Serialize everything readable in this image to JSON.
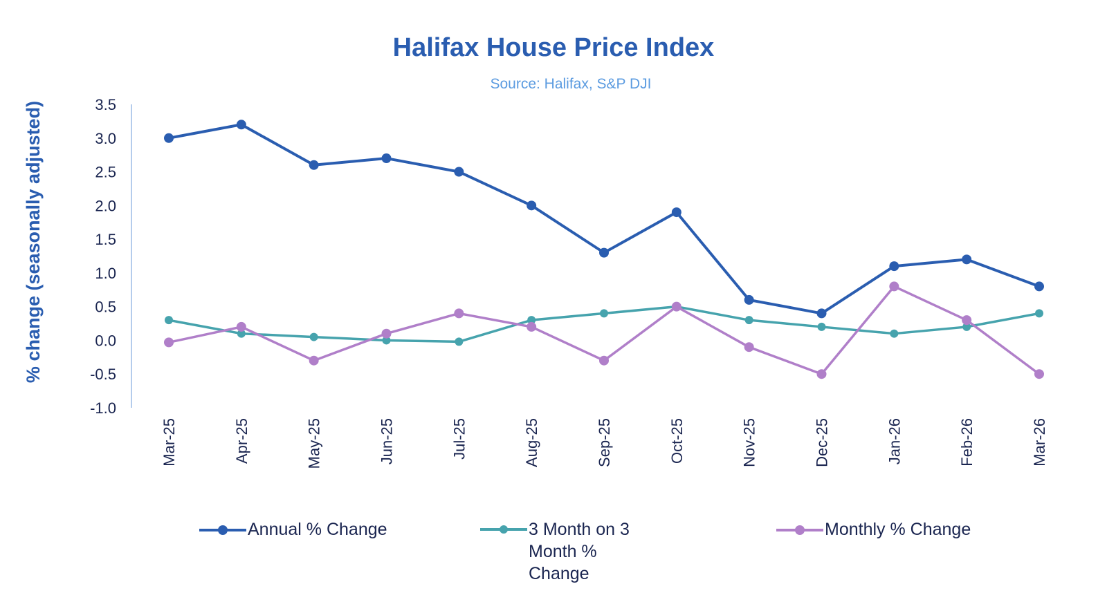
{
  "chart_data": {
    "type": "line",
    "title": "Halifax House Price Index",
    "subtitle": "Source: Halifax, S&P DJI",
    "ylabel": "%  change (seasonally adjusted)",
    "xlabel": "",
    "ylim": [
      -1.0,
      3.5
    ],
    "yticks": [
      "3.5",
      "3.0",
      "2.5",
      "2.0",
      "1.5",
      "1.0",
      "0.5",
      "0.0",
      "-0.5",
      "-1.0"
    ],
    "categories": [
      "Mar-25",
      "Apr-25",
      "May-25",
      "Jun-25",
      "Jul-25",
      "Aug-25",
      "Sep-25",
      "Oct-25",
      "Nov-25",
      "Dec-25",
      "Jan-26",
      "Feb-26",
      "Mar-26"
    ],
    "grid": false,
    "legend_position": "bottom",
    "series": [
      {
        "name": "Annual % Change",
        "color": "#2a5db0",
        "values": [
          3.0,
          3.2,
          2.6,
          2.7,
          2.5,
          2.0,
          1.3,
          1.9,
          0.6,
          0.4,
          1.1,
          1.2,
          0.8
        ]
      },
      {
        "name": "3 Month on 3 Month % Change",
        "color": "#46a3ad",
        "values": [
          0.3,
          0.1,
          0.05,
          0.0,
          -0.02,
          0.3,
          0.4,
          0.5,
          0.3,
          0.2,
          0.1,
          0.2,
          0.4
        ]
      },
      {
        "name": "Monthly % Change",
        "color": "#b07fc9",
        "values": [
          -0.03,
          0.2,
          -0.3,
          0.1,
          0.4,
          0.2,
          -0.3,
          0.5,
          -0.1,
          -0.5,
          0.8,
          0.3,
          -0.5
        ]
      }
    ]
  }
}
